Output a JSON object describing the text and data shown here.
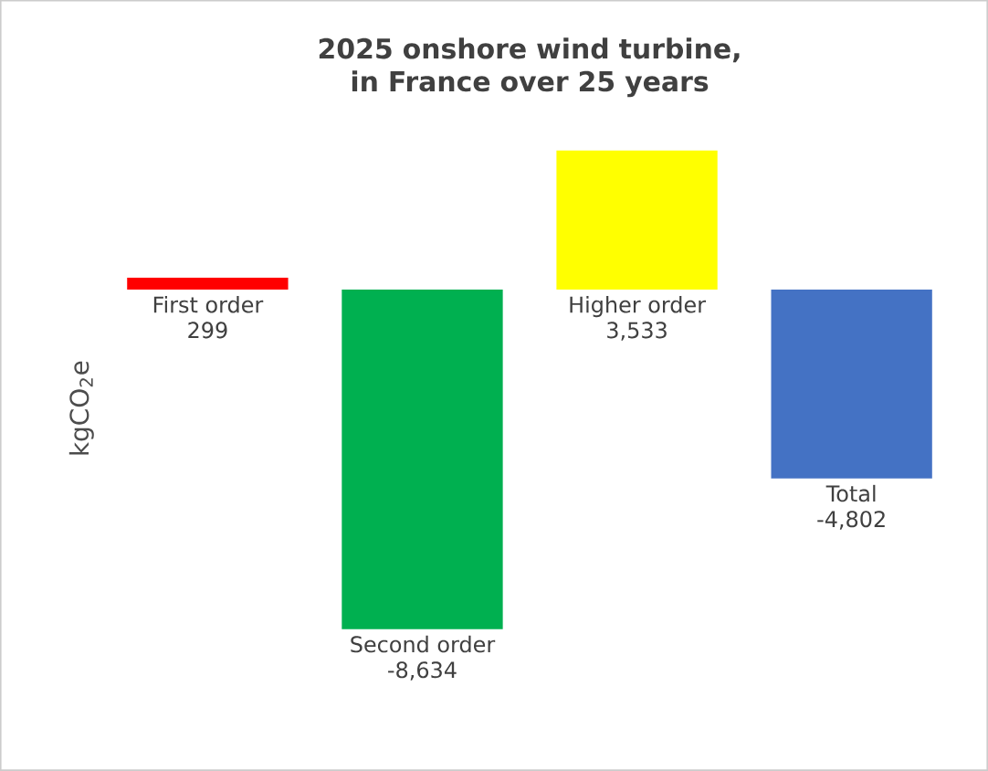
{
  "chart_data": {
    "type": "bar",
    "title": "2025 onshore wind turbine,\nin France over 25 years",
    "ylabel": "kgCO$_{2}$e",
    "categories": [
      "First order",
      "Second order",
      "Higher order",
      "Total"
    ],
    "values": [
      299,
      -8634,
      3533,
      -4802
    ],
    "colors": [
      "#ff0000",
      "#00b050",
      "#ffff00",
      "#4472c4"
    ],
    "value_labels": [
      "299",
      "-8,634",
      "3,533",
      "-4,802"
    ]
  }
}
